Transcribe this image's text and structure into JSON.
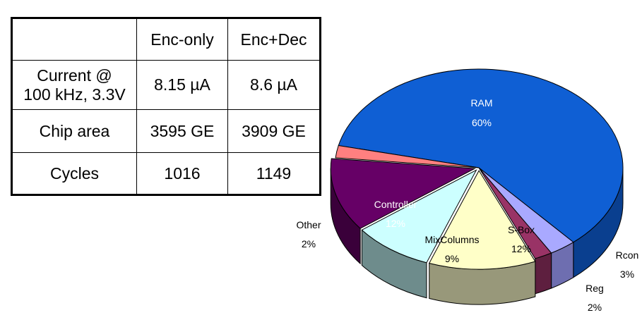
{
  "table": {
    "headers": [
      "",
      "Enc-only",
      "Enc+Dec"
    ],
    "rows": [
      {
        "label": "Current @",
        "label2": "100 kHz, 3.3V",
        "values": [
          "8.15 µA",
          "8.6 µA"
        ]
      },
      {
        "label": "Chip area",
        "values": [
          "3595 GE",
          "3909 GE"
        ]
      },
      {
        "label": "Cycles",
        "values": [
          "1016",
          "1149"
        ]
      }
    ]
  },
  "chart_data": {
    "type": "pie",
    "title": "",
    "slices": [
      {
        "name": "RAM",
        "value": 60,
        "label": "60%",
        "color": "#0f5fd4",
        "side": "#0a3f8f",
        "text_color": "#ffffff"
      },
      {
        "name": "Rcon",
        "value": 3,
        "label": "3%",
        "color": "#a9a9ff",
        "side": "#6e6eb0",
        "text_color": "#000000"
      },
      {
        "name": "Reg",
        "value": 2,
        "label": "2%",
        "color": "#993366",
        "side": "#5e1f3f",
        "text_color": "#000000"
      },
      {
        "name": "S-Box",
        "value": 12,
        "label": "12%",
        "color": "#ffffc8",
        "side": "#98987a",
        "text_color": "#000000"
      },
      {
        "name": "MixColumns",
        "value": 9,
        "label": "9%",
        "color": "#ccffff",
        "side": "#6e8c8c",
        "text_color": "#000000"
      },
      {
        "name": "Controller",
        "value": 12,
        "label": "12%",
        "color": "#660066",
        "side": "#3a003a",
        "text_color": "#ffffff"
      },
      {
        "name": "Other",
        "value": 2,
        "label": "2%",
        "color": "#ff8080",
        "side": "#9a4d4d",
        "text_color": "#000000"
      }
    ]
  }
}
